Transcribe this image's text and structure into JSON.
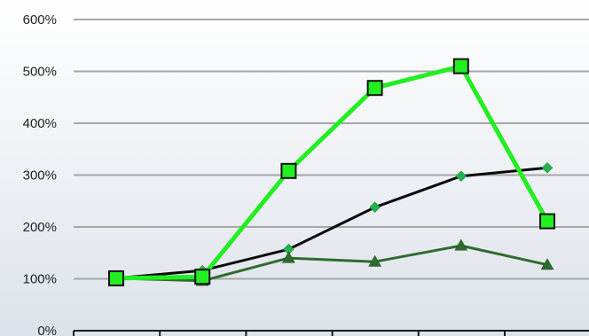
{
  "chart_data": {
    "type": "line",
    "x": [
      1,
      2,
      3,
      4,
      5,
      6
    ],
    "ylim": [
      0,
      600
    ],
    "yticks": [
      0,
      100,
      200,
      300,
      400,
      500,
      600
    ],
    "ytick_labels": [
      "0%",
      "100%",
      "200%",
      "300%",
      "400%",
      "500%",
      "600%"
    ],
    "xtick_labels": [
      "",
      "",
      "",
      "",
      "",
      ""
    ],
    "grid": true,
    "legend": "none",
    "series": [
      {
        "values": [
          101,
          116,
          157,
          238,
          298,
          314
        ],
        "color": "#0a0a0a",
        "marker": "diamond",
        "marker_color": "#22b14c",
        "line_width": 3
      },
      {
        "values": [
          101,
          96,
          140,
          133,
          164,
          127
        ],
        "color": "#2f6b2f",
        "marker": "triangle",
        "marker_color": "#2f6b2f",
        "line_width": 3
      },
      {
        "values": [
          101,
          104,
          308,
          468,
          510,
          211
        ],
        "color": "#22ee22",
        "marker": "square",
        "marker_color": "#22ee22",
        "line_width": 5
      }
    ]
  }
}
